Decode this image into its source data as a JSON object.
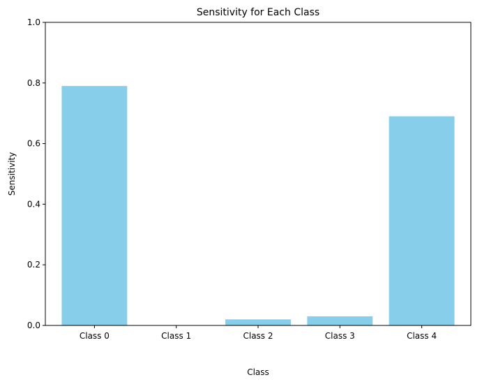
{
  "chart_data": {
    "type": "bar",
    "title": "Sensitivity for Each Class",
    "xlabel": "Class",
    "ylabel": "Sensitivity",
    "categories": [
      "Class 0",
      "Class 1",
      "Class 2",
      "Class 3",
      "Class 4"
    ],
    "values": [
      0.79,
      0.0,
      0.02,
      0.03,
      0.69
    ],
    "ylim": [
      0,
      1.0
    ],
    "yticks": [
      0.0,
      0.2,
      0.4,
      0.6,
      0.8,
      1.0
    ],
    "ytick_labels": [
      "0.0",
      "0.2",
      "0.4",
      "0.6",
      "0.8",
      "1.0"
    ],
    "grid": false,
    "legend": false,
    "bar_color": "#87ceeb"
  }
}
